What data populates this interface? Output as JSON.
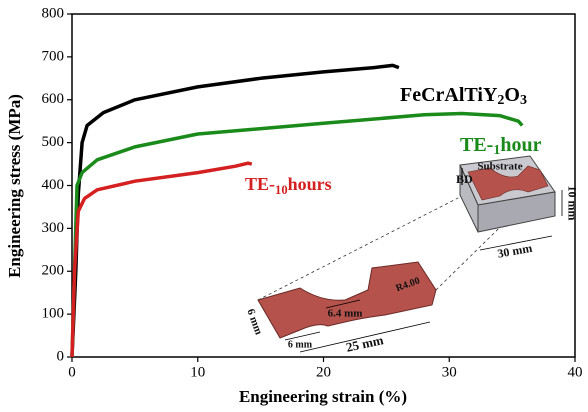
{
  "chart_data": {
    "type": "line",
    "xlabel": "Engineering strain (%)",
    "ylabel": "Engineering stress (MPa)",
    "xlim": [
      0,
      40
    ],
    "xticks": [
      0,
      10,
      20,
      30,
      40
    ],
    "ylim": [
      0,
      800
    ],
    "yticks": [
      0,
      100,
      200,
      300,
      400,
      500,
      600,
      700,
      800
    ],
    "grid": false,
    "series": [
      {
        "name": "FeCrAlTiY2O3",
        "color": "#000000",
        "x": [
          0,
          0.3,
          0.5,
          0.8,
          1.2,
          2.5,
          5,
          10,
          15,
          20,
          24,
          25.5,
          26
        ],
        "values": [
          0,
          200,
          380,
          500,
          540,
          570,
          600,
          630,
          650,
          665,
          675,
          680,
          675
        ]
      },
      {
        "name": "TE-1hour",
        "color": "#1a8a1a",
        "x": [
          0,
          0.2,
          0.4,
          0.8,
          2,
          5,
          10,
          20,
          28,
          31,
          34,
          35.5,
          35.8
        ],
        "values": [
          0,
          200,
          400,
          430,
          460,
          490,
          520,
          545,
          565,
          568,
          563,
          550,
          540
        ]
      },
      {
        "name": "TE-10hours",
        "color": "#d42020",
        "x": [
          0,
          0.2,
          0.5,
          1,
          2,
          5,
          10,
          13,
          14,
          14.3
        ],
        "values": [
          0,
          200,
          340,
          370,
          390,
          410,
          430,
          445,
          452,
          450
        ]
      }
    ],
    "annotations": [
      "Substrate",
      "BD",
      "10 mm",
      "30 mm",
      "R4.00",
      "6 mm",
      "6 mm",
      "6.4 mm",
      "25 mm"
    ]
  }
}
